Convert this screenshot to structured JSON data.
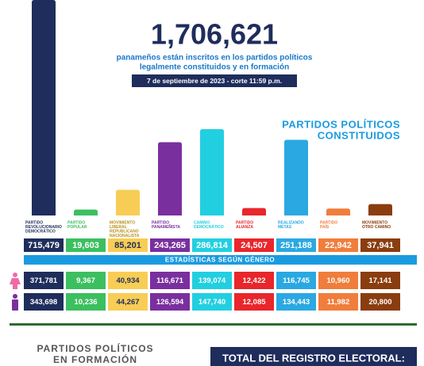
{
  "chart_data": {
    "type": "bar",
    "headline": "1,706,621",
    "subtitle_lines": [
      "panameños están inscritos en los partidos políticos",
      "legalmente constituidos y en formación"
    ],
    "date": "7 de septiembre de 2023 - corte 11:59 p.m.",
    "section_title_lines": [
      "PARTIDOS POLÍTICOS",
      "CONSTITUIDOS"
    ],
    "categories": [
      [
        "PARTIDO",
        "REVOLUCIONARIO",
        "DEMOCRÁTICO"
      ],
      [
        "PARTIDO",
        "POPULAR"
      ],
      [
        "MOVIMIENTO",
        "LIBERAL",
        "REPUBLICANO",
        "NACIONALISTA"
      ],
      [
        "PARTIDO",
        "PANAMEÑISTA"
      ],
      [
        "CAMBIO",
        "DEMOCRÁTICO"
      ],
      [
        "PARTIDO",
        "ALIANZA"
      ],
      [
        "REALIZANDO",
        "METAS"
      ],
      [
        "PARTIDO",
        "PAÍS"
      ],
      [
        "MOVIMIENTO",
        "OTRO CAMINO"
      ]
    ],
    "colors": [
      "#1f2d5c",
      "#3cbf5f",
      "#f8cd55",
      "#7a2f9e",
      "#22cfe0",
      "#e8262b",
      "#2aa8e2",
      "#f07d3b",
      "#8a3d0f"
    ],
    "values": [
      715479,
      19603,
      85201,
      243265,
      286814,
      24507,
      251188,
      22942,
      37941
    ],
    "value_labels": [
      "715,479",
      "19,603",
      "85,201",
      "243,265",
      "286,814",
      "24,507",
      "251,188",
      "22,942",
      "37,941"
    ],
    "gender_title": "ESTADÍSTICAS SEGÚN GÉNERO",
    "female": {
      "values": [
        371781,
        9367,
        40934,
        116671,
        139074,
        12422,
        116745,
        10960,
        17141
      ],
      "value_labels": [
        "371,781",
        "9,367",
        "40,934",
        "116,671",
        "139,074",
        "12,422",
        "116,745",
        "10,960",
        "17,141"
      ]
    },
    "male": {
      "values": [
        343698,
        10236,
        44267,
        126594,
        147740,
        12085,
        134443,
        11982,
        20800
      ],
      "value_labels": [
        "343,698",
        "10,236",
        "44,267",
        "126,594",
        "147,740",
        "12,085",
        "134,443",
        "11,982",
        "20,800"
      ]
    },
    "formation_title_lines": [
      "PARTIDOS POLÍTICOS",
      "EN FORMACIÓN"
    ],
    "total_title": "TOTAL DEL REGISTRO ELECTORAL:"
  }
}
